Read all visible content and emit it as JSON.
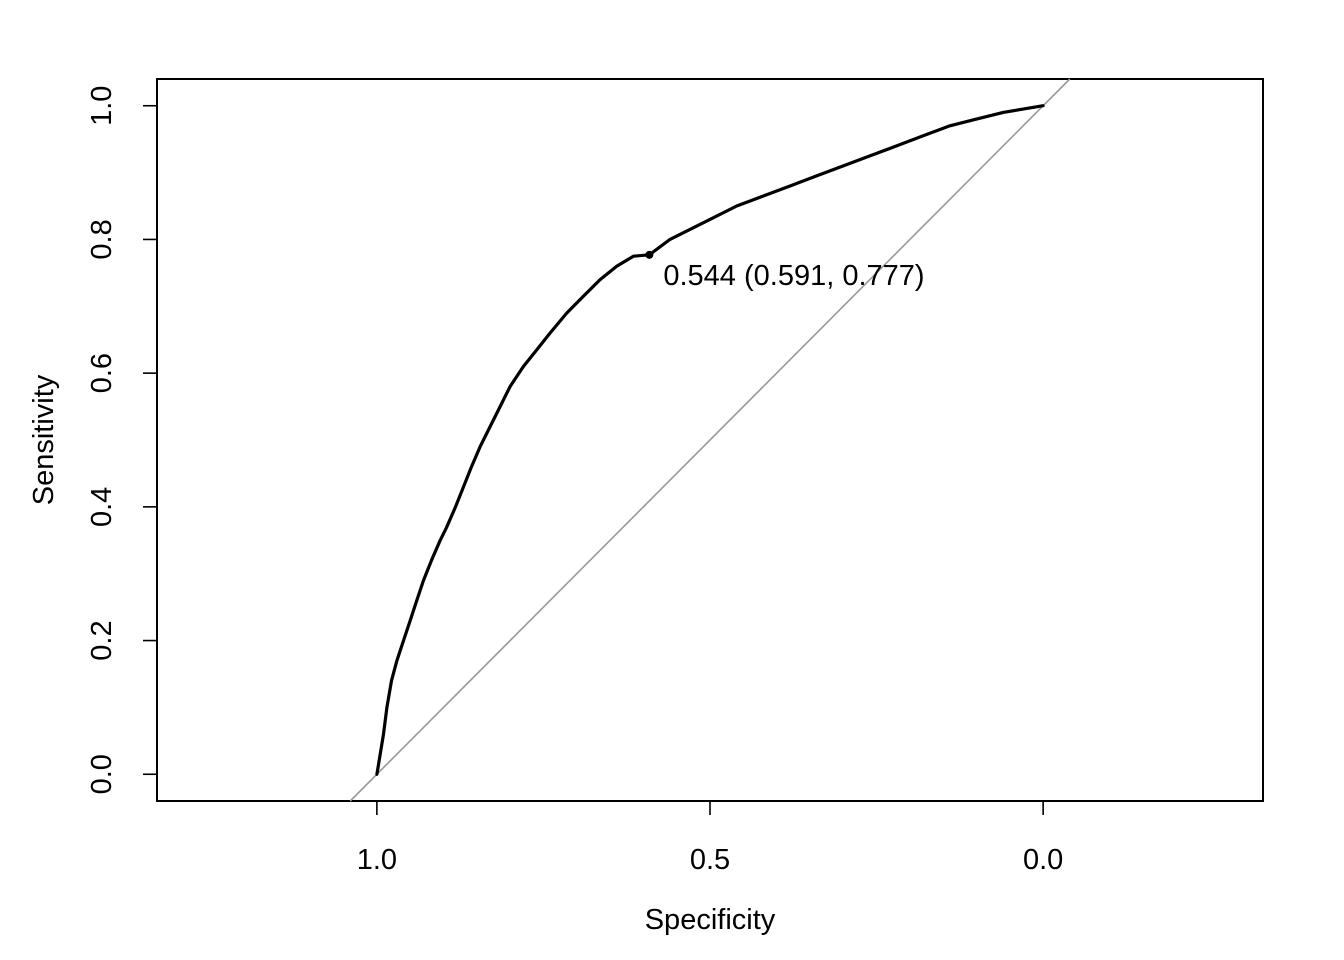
{
  "chart_data": {
    "type": "line",
    "title": "",
    "xlabel": "Specificity",
    "ylabel": "Sensitivity",
    "x_reversed": true,
    "xlim": [
      1.33,
      -0.33
    ],
    "ylim": [
      -0.04,
      1.04
    ],
    "xticks": [
      {
        "value": 1.0,
        "label": "1.0"
      },
      {
        "value": 0.5,
        "label": "0.5"
      },
      {
        "value": 0.0,
        "label": "0.0"
      }
    ],
    "yticks": [
      {
        "value": 0.0,
        "label": "0.0"
      },
      {
        "value": 0.2,
        "label": "0.2"
      },
      {
        "value": 0.4,
        "label": "0.4"
      },
      {
        "value": 0.6,
        "label": "0.6"
      },
      {
        "value": 0.8,
        "label": "0.8"
      },
      {
        "value": 1.0,
        "label": "1.0"
      }
    ],
    "grid": false,
    "series": [
      {
        "color": "#000000",
        "points": [
          [
            1.0,
            0.0
          ],
          [
            0.995,
            0.03
          ],
          [
            0.99,
            0.06
          ],
          [
            0.985,
            0.1
          ],
          [
            0.978,
            0.14
          ],
          [
            0.97,
            0.17
          ],
          [
            0.96,
            0.2
          ],
          [
            0.95,
            0.23
          ],
          [
            0.94,
            0.26
          ],
          [
            0.93,
            0.29
          ],
          [
            0.918,
            0.32
          ],
          [
            0.905,
            0.35
          ],
          [
            0.895,
            0.37
          ],
          [
            0.882,
            0.4
          ],
          [
            0.87,
            0.43
          ],
          [
            0.858,
            0.46
          ],
          [
            0.845,
            0.49
          ],
          [
            0.83,
            0.52
          ],
          [
            0.815,
            0.55
          ],
          [
            0.8,
            0.58
          ],
          [
            0.78,
            0.61
          ],
          [
            0.76,
            0.635
          ],
          [
            0.74,
            0.66
          ],
          [
            0.715,
            0.69
          ],
          [
            0.69,
            0.715
          ],
          [
            0.665,
            0.74
          ],
          [
            0.64,
            0.76
          ],
          [
            0.615,
            0.775
          ],
          [
            0.591,
            0.777
          ],
          [
            0.56,
            0.8
          ],
          [
            0.53,
            0.815
          ],
          [
            0.5,
            0.83
          ],
          [
            0.46,
            0.85
          ],
          [
            0.42,
            0.865
          ],
          [
            0.38,
            0.88
          ],
          [
            0.34,
            0.895
          ],
          [
            0.3,
            0.91
          ],
          [
            0.26,
            0.925
          ],
          [
            0.22,
            0.94
          ],
          [
            0.18,
            0.955
          ],
          [
            0.14,
            0.97
          ],
          [
            0.1,
            0.98
          ],
          [
            0.06,
            0.99
          ],
          [
            0.03,
            0.995
          ],
          [
            0.0,
            1.0
          ]
        ]
      }
    ],
    "reference_line": {
      "color": "#999999",
      "from": [
        1.0,
        0.0
      ],
      "to": [
        0.0,
        1.0
      ]
    },
    "annotations": [
      {
        "text": "0.544 (0.591, 0.777)",
        "x": 0.591,
        "y": 0.777
      }
    ]
  }
}
